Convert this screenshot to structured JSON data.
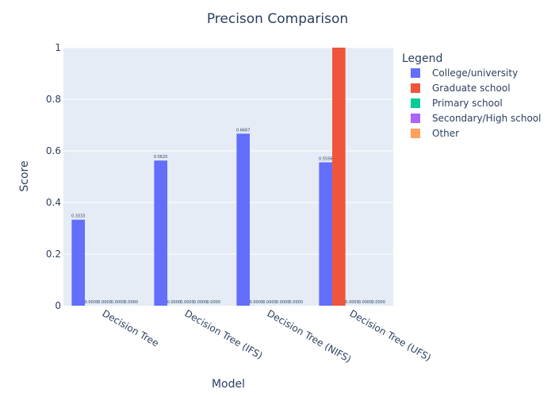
{
  "chart_data": {
    "type": "bar",
    "title": "Precison Comparison",
    "xlabel": "Model",
    "ylabel": "Score",
    "ylim": [
      0,
      1
    ],
    "yticks": [
      "0",
      "0.2",
      "0.4",
      "0.6",
      "0.8",
      "1"
    ],
    "grid": true,
    "categories": [
      "Decision Tree",
      "Decision Tree (IFS)",
      "Decision Tree (NIFS)",
      "Decision Tree (UFS)"
    ],
    "legend": {
      "title": "Legend",
      "placement": "right"
    },
    "series": [
      {
        "name": "College/university",
        "color": "#636efa",
        "values": [
          0.3333,
          0.5625,
          0.6667,
          0.5556
        ],
        "labels": [
          "0.3333",
          "0.5625",
          "0.6667",
          "0.5556"
        ]
      },
      {
        "name": "Graduate school",
        "color": "#ef553b",
        "values": [
          0,
          0,
          0,
          1
        ],
        "labels": [
          "0.0000",
          "0.0000",
          "0.0000",
          ""
        ]
      },
      {
        "name": "Primary school",
        "color": "#00cc96",
        "values": [
          0,
          0,
          0,
          0
        ],
        "labels": [
          "0.0000",
          "0.0000",
          "0.0000",
          "0.0000"
        ]
      },
      {
        "name": "Secondary/High school",
        "color": "#ab63fa",
        "values": [
          0,
          0,
          0,
          0
        ],
        "labels": [
          "0.0000",
          "0.0000",
          "0.0000",
          "0.0000"
        ]
      },
      {
        "name": "Other",
        "color": "#ffa15a",
        "values": [
          0,
          0,
          0,
          0
        ],
        "labels": [
          "0.0000",
          "0.0000",
          "0.0000",
          "0.0000"
        ]
      }
    ]
  }
}
